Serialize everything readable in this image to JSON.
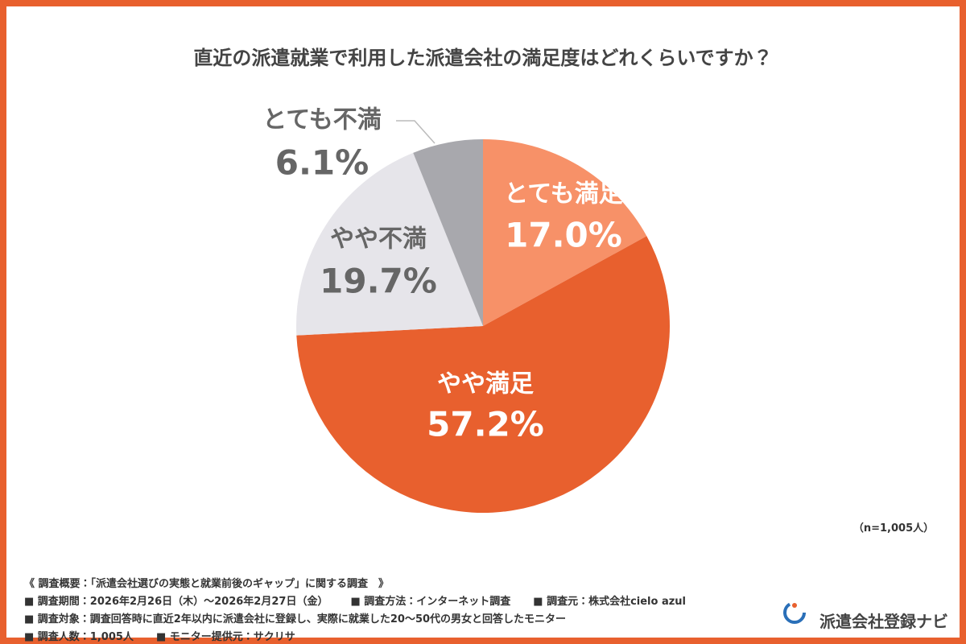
{
  "chart_data": {
    "type": "pie",
    "title": "直近の派遣就業で利用した派遣会社の満足度はどれくらいですか？",
    "categories": [
      "とても満足",
      "やや満足",
      "やや不満",
      "とても不満"
    ],
    "values": [
      17.0,
      57.2,
      19.7,
      6.1
    ],
    "value_labels": [
      "17.0%",
      "57.2%",
      "19.7%",
      "6.1%"
    ],
    "colors": [
      "#f79168",
      "#e8602e",
      "#e6e5ea",
      "#a8a8ad"
    ],
    "sample_note": "（n=1,005人）"
  },
  "footer": {
    "rows": [
      [
        "《 調査概要：「派遣会社選びの実態と就業前後のギャップ」に関する調査　》"
      ],
      [
        "■ 調査期間：2026年2月26日（木）〜2026年2月27日（金）",
        "■ 調査方法：インターネット調査",
        "■ 調査元：株式会社cielo azul"
      ],
      [
        "■ 調査対象：調査回答時に直近2年以内に派遣会社に登録し、実際に就業した20〜50代の男女と回答したモニター"
      ],
      [
        "■ 調査人数：1,005人",
        "■ モニター提供元：サクリサ"
      ]
    ],
    "brand": "派遣会社登録ナビ"
  }
}
